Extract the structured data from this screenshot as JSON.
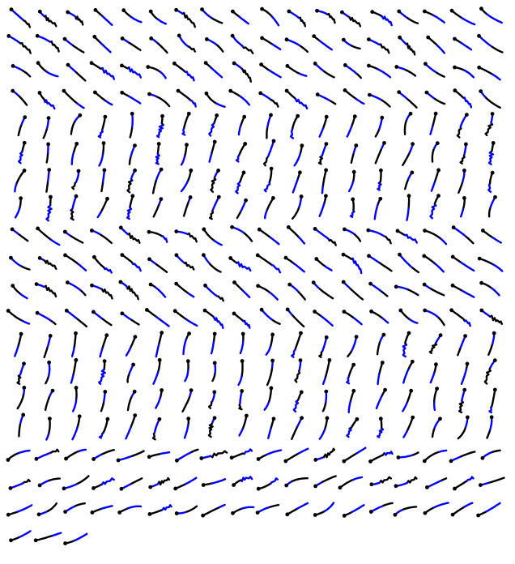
{
  "grid": {
    "columns": 18,
    "rows": 20,
    "total_glyphs": 345,
    "stroke_colors": {
      "primary": "#0000ff",
      "secondary": "#000000"
    }
  }
}
